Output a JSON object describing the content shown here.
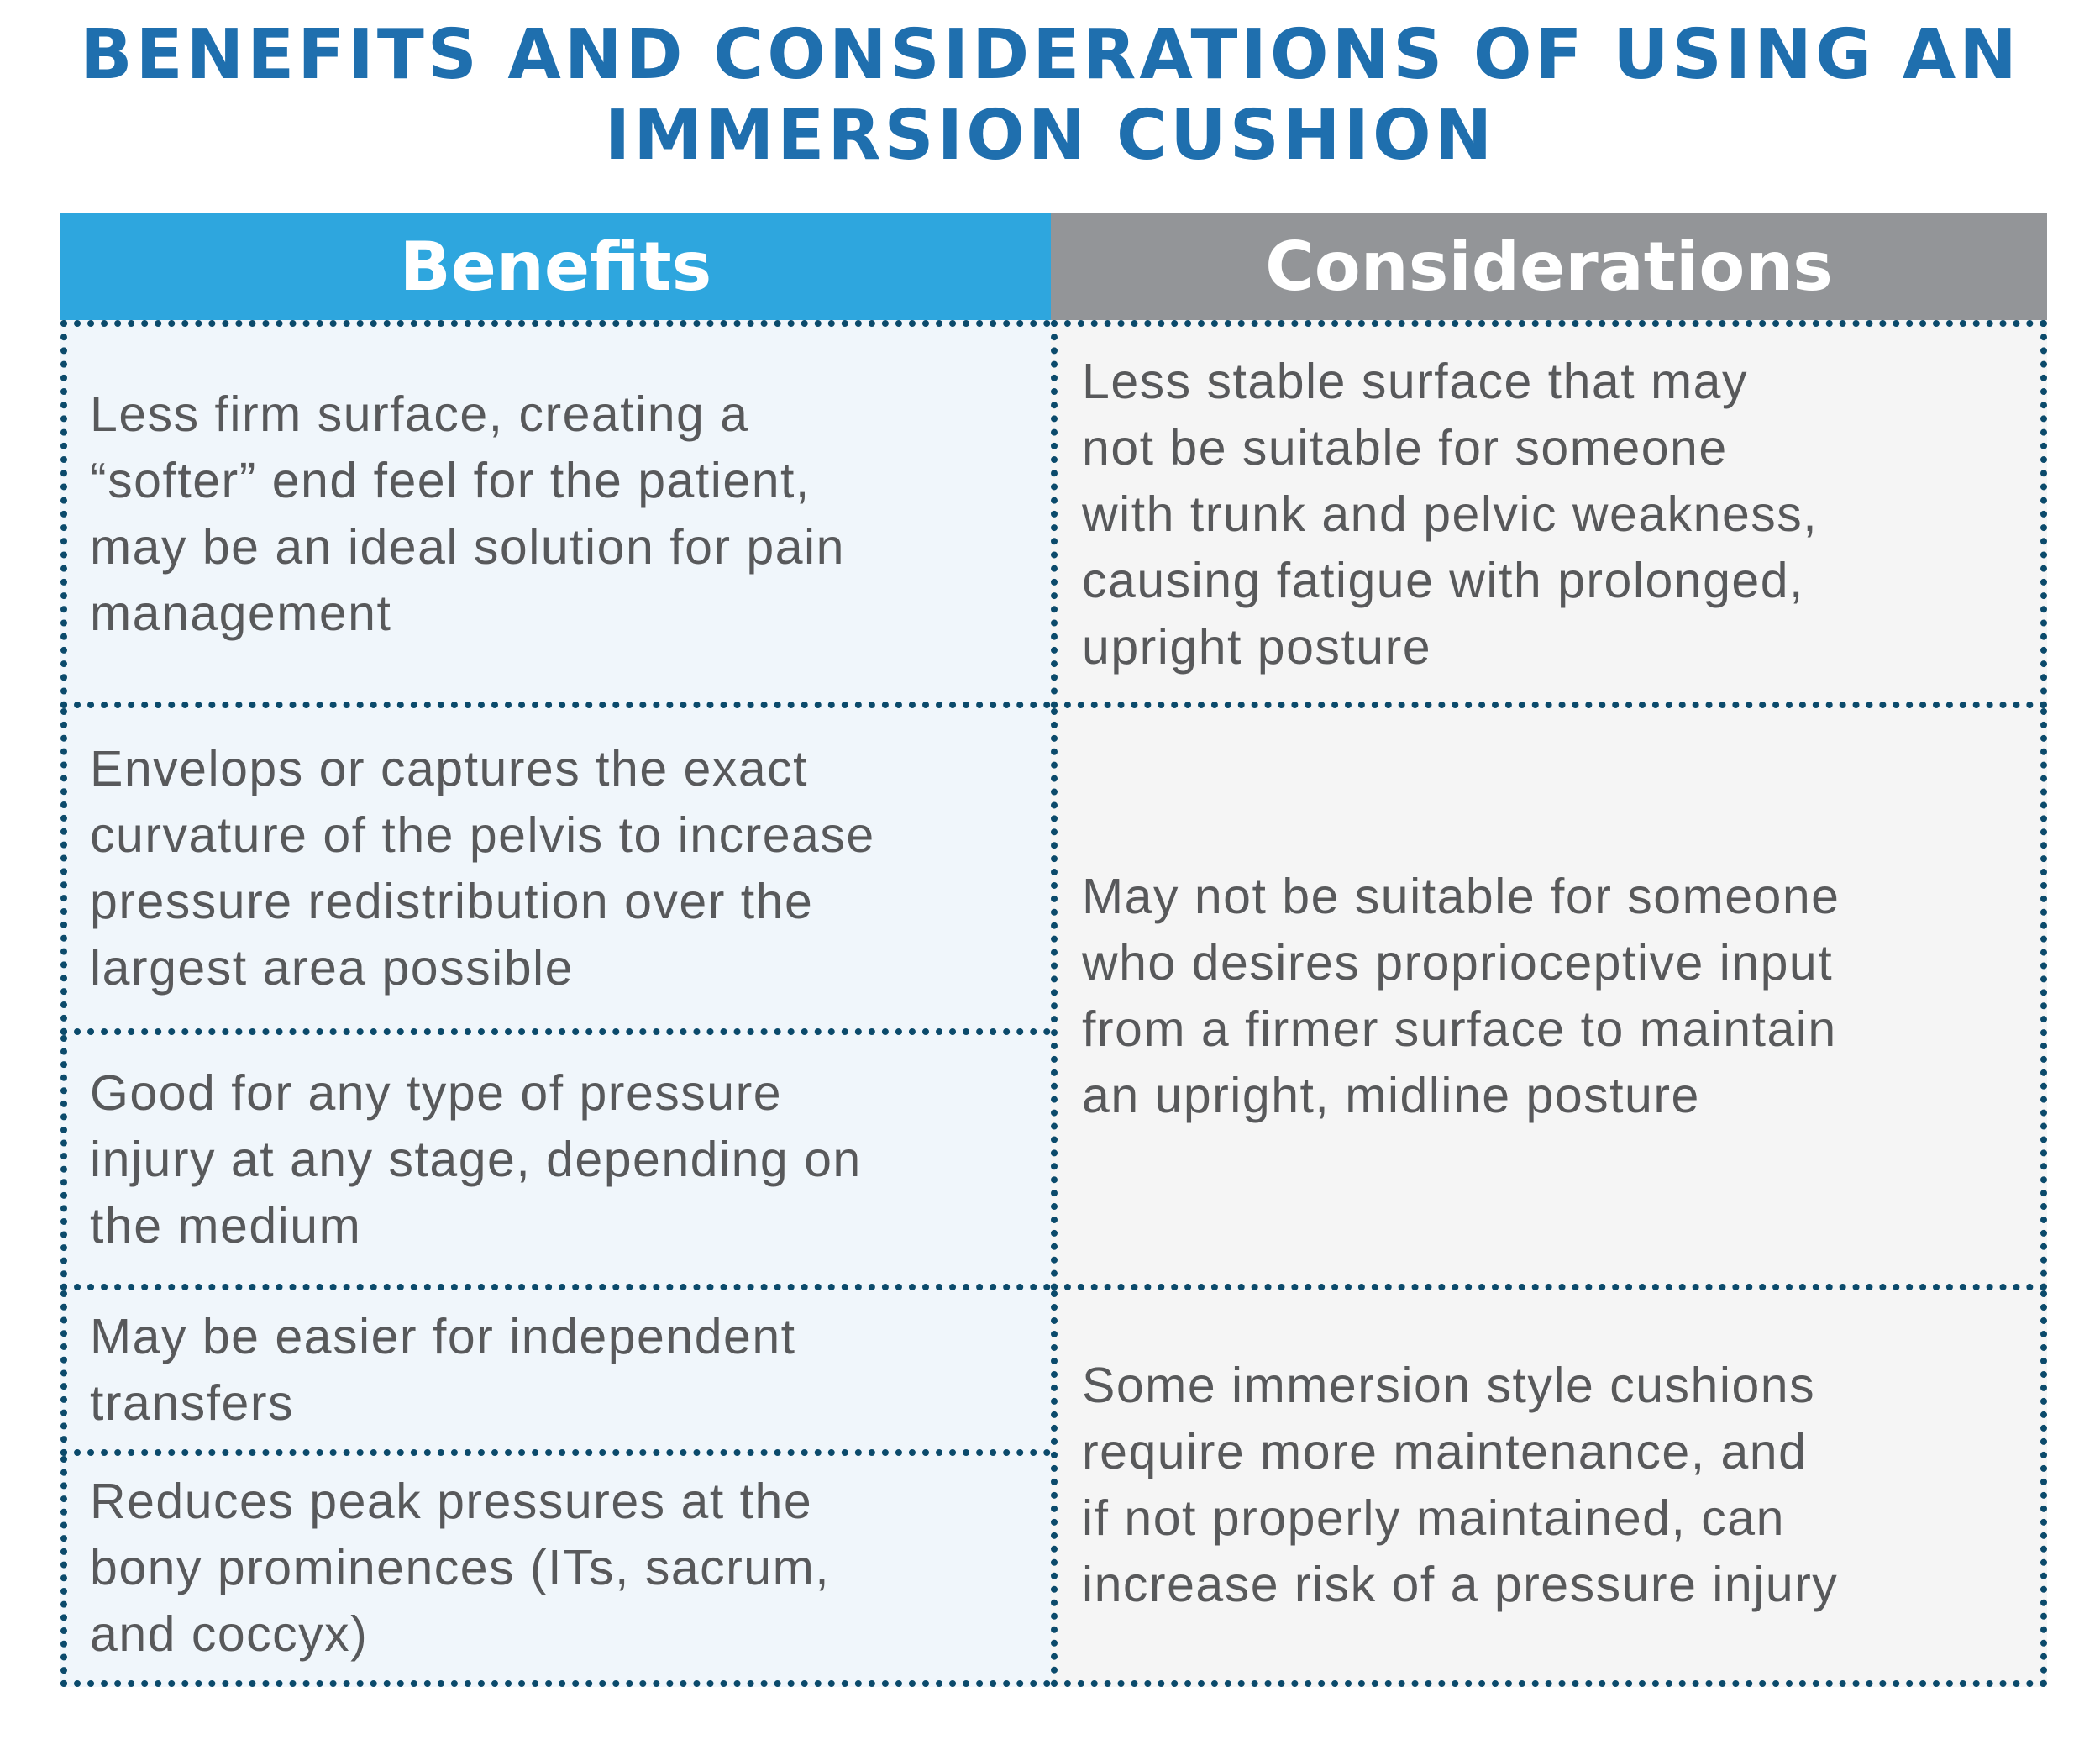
{
  "title": "BENEFITS AND CONSIDERATIONS OF USING AN\nIMMERSION CUSHION",
  "headers": {
    "benefits": "Benefits",
    "considerations": "Considerations"
  },
  "benefits": [
    "Less firm surface, creating a\n“softer” end feel for the patient,\nmay be an ideal solution for pain\nmanagement",
    "Envelops or captures the exact\ncurvature of the pelvis to increase\npressure redistribution over the\nlargest area possible",
    "Good for any type of pressure\ninjury at any stage, depending on\nthe medium",
    "May be easier for independent\ntransfers",
    "Reduces peak pressures at the\nbony prominences (ITs, sacrum,\nand coccyx)"
  ],
  "considerations": [
    "Less stable surface that may\nnot be suitable for someone\nwith trunk and pelvic weakness,\ncausing fatigue with prolonged,\nupright posture",
    "May not be suitable for someone\nwho desires proprioceptive input\nfrom a firmer surface to maintain\nan upright, midline posture",
    "Some immersion style cushions\nrequire more maintenance, and\nif not properly maintained, can\nincrease risk of a pressure injury"
  ],
  "colors": {
    "title": "#1f6fae",
    "benefits_header": "#2ea6de",
    "considerations_header": "#939598",
    "dots": "#0b4a6b",
    "text": "#58595b"
  }
}
